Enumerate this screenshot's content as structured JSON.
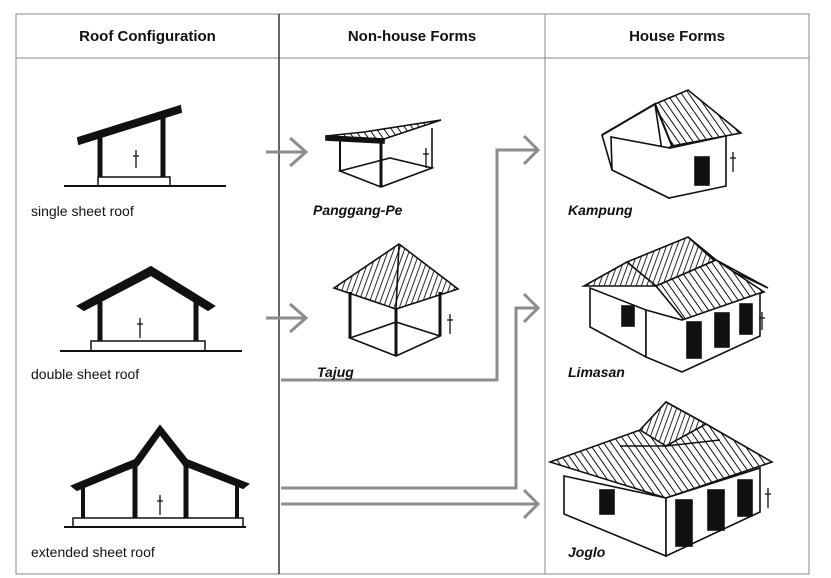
{
  "headers": {
    "roof": "Roof Configuration",
    "nonhouse": "Non-house Forms",
    "house": "House Forms"
  },
  "roof_types": [
    {
      "label": "single sheet roof"
    },
    {
      "label": "double sheet roof"
    },
    {
      "label": "extended sheet roof"
    }
  ],
  "nonhouse_forms": [
    {
      "name": "Panggang-Pe"
    },
    {
      "name": "Tajug"
    }
  ],
  "house_forms": [
    {
      "name": "Kampung"
    },
    {
      "name": "Limasan"
    },
    {
      "name": "Joglo"
    }
  ],
  "colors": {
    "ink": "#111111",
    "grid": "#888888",
    "arrow": "#8c8c8c"
  }
}
